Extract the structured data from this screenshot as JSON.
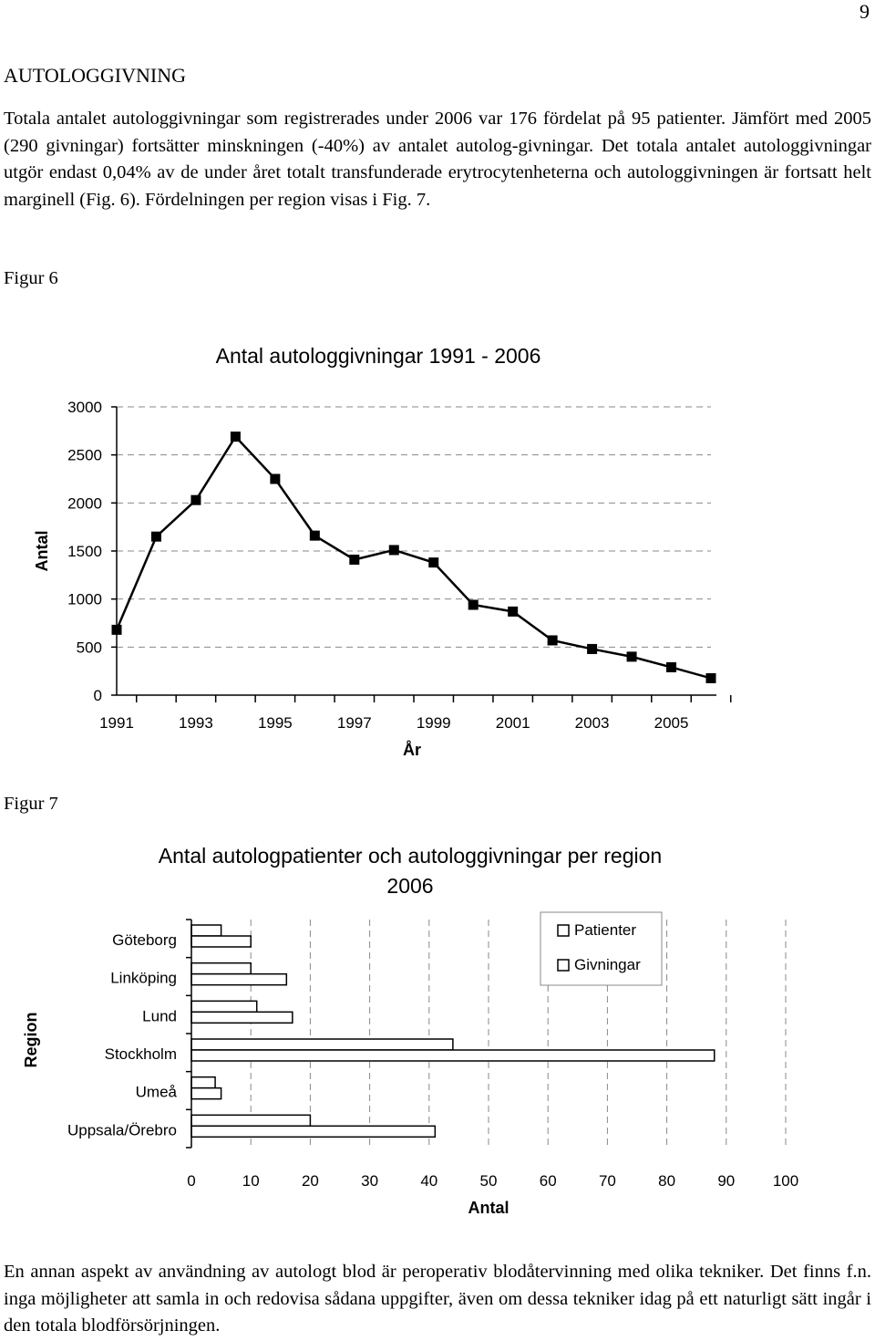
{
  "page_number": "9",
  "section_heading": "AUTOLOGGIVNING",
  "paragraph1": "Totala antalet autologgivningar som registrerades under 2006 var 176 fördelat på 95 patienter. Jämfört med 2005 (290 givningar) fortsätter minskningen (-40%) av antalet autolog-givningar. Det totala antalet autologgivningar utgör endast 0,04% av de under året totalt transfunderade erytrocytenheterna och autologgivningen är fortsatt helt marginell (Fig. 6). Fördelningen per region visas i Fig. 7.",
  "figure6_label": "Figur 6",
  "figure7_label": "Figur 7",
  "paragraph2": "En annan aspekt av användning av autologt blod är peroperativ blodåtervinning med olika tekniker. Det finns f.n. inga möjligheter att samla in och redovisa sådana uppgifter, även om dessa tekniker idag på ett naturligt sätt ingår i den totala blodförsörjningen.",
  "chart_data": [
    {
      "type": "line",
      "title": "Antal autologgivningar 1991 - 2006",
      "xlabel": "År",
      "ylabel": "Antal",
      "x": [
        1991,
        1992,
        1993,
        1994,
        1995,
        1996,
        1997,
        1998,
        1999,
        2000,
        2001,
        2002,
        2003,
        2004,
        2005,
        2006
      ],
      "values": [
        680,
        1650,
        2030,
        2690,
        2250,
        1660,
        1410,
        1510,
        1380,
        940,
        870,
        570,
        480,
        400,
        290,
        176
      ],
      "xticklabels": [
        "1991",
        "1993",
        "1995",
        "1997",
        "1999",
        "2001",
        "2003",
        "2005"
      ],
      "yticks": [
        0,
        500,
        1000,
        1500,
        2000,
        2500,
        3000
      ],
      "yticklabels": [
        "0",
        "500",
        "1000",
        "1500",
        "2000",
        "2500",
        "3000"
      ],
      "ylim": [
        0,
        3000
      ],
      "grid": true,
      "marker": "square"
    },
    {
      "type": "bar",
      "orientation": "horizontal",
      "title": "Antal autologpatienter och autologgivningar per region 2006",
      "xlabel": "Antal",
      "ylabel": "Region",
      "categories": [
        "Göteborg",
        "Linköping",
        "Lund",
        "Stockholm",
        "Umeå",
        "Uppsala/Örebro"
      ],
      "series": [
        {
          "name": "Patienter",
          "values": [
            5,
            10,
            11,
            44,
            4,
            20
          ]
        },
        {
          "name": "Givningar",
          "values": [
            10,
            16,
            17,
            88,
            5,
            41
          ]
        }
      ],
      "xticks": [
        0,
        10,
        20,
        30,
        40,
        50,
        60,
        70,
        80,
        90,
        100
      ],
      "xticklabels": [
        "0",
        "10",
        "20",
        "30",
        "40",
        "50",
        "60",
        "70",
        "80",
        "90",
        "100"
      ],
      "xlim": [
        0,
        100
      ],
      "grid": true,
      "legend": "top-right",
      "bar_fill": "#ffffff"
    }
  ]
}
